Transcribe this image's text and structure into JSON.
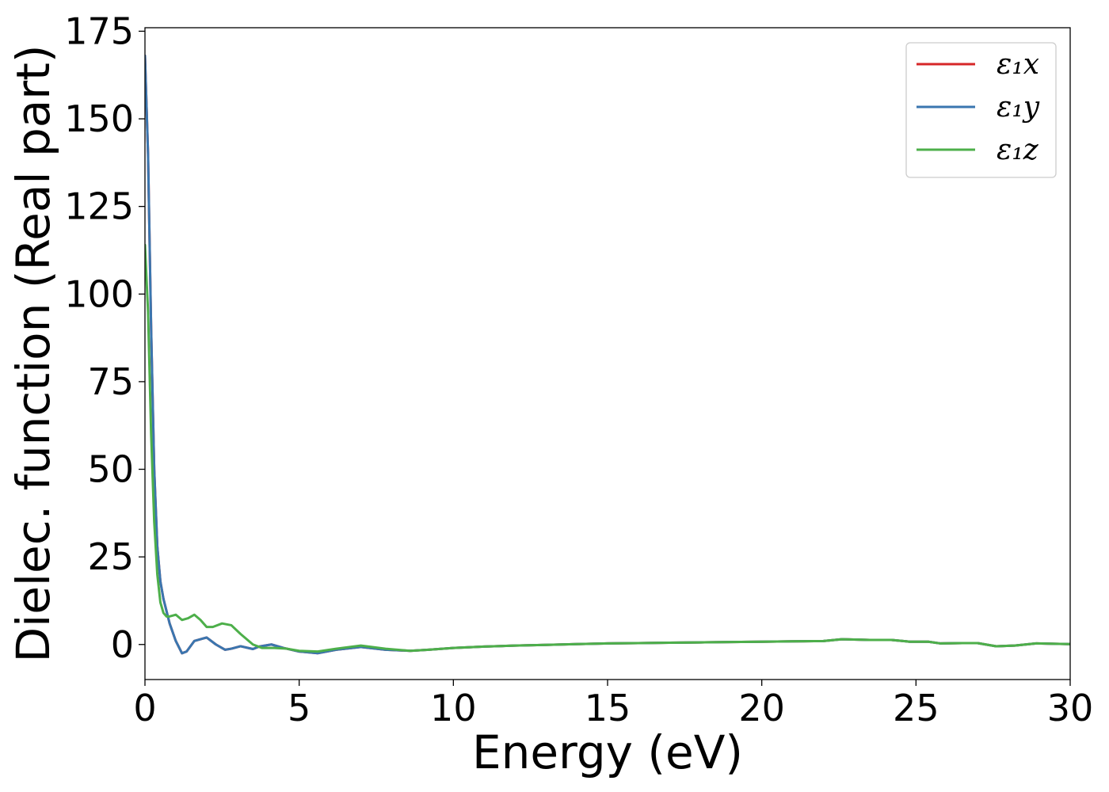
{
  "chart_data": {
    "type": "line",
    "title": "",
    "xlabel": "Energy (eV)",
    "ylabel": "Dielec. function (Real part)",
    "xlim": [
      0,
      30
    ],
    "ylim": [
      -10,
      176
    ],
    "xticks": [
      0,
      5,
      10,
      15,
      20,
      25,
      30
    ],
    "yticks": [
      0,
      25,
      50,
      75,
      100,
      125,
      150,
      175
    ],
    "grid": false,
    "legend_position": "top-right",
    "series": [
      {
        "name": "ε₁x",
        "legend_label": "ε₁x",
        "color": "#d62728",
        "x": [
          0,
          0.1,
          0.2,
          0.3,
          0.4,
          0.5,
          0.6,
          0.8,
          1.0,
          1.2,
          1.35,
          1.6,
          2.0,
          2.3,
          2.6,
          2.8,
          3.1,
          3.5,
          3.7,
          4.1,
          4.5,
          5.0,
          5.6,
          6.2,
          7.0,
          7.8,
          8.6,
          9.2,
          10,
          11,
          12,
          13,
          14,
          15,
          16,
          17,
          18,
          19,
          20,
          21,
          22,
          22.6,
          23.5,
          24.2,
          24.8,
          25.4,
          25.8,
          26.5,
          27.0,
          27.6,
          28.2,
          28.9,
          29.5,
          30
        ],
        "y": [
          168,
          140,
          90,
          50,
          28,
          18,
          13,
          6,
          1,
          -2.5,
          -2,
          1,
          2,
          0,
          -1.5,
          -1.2,
          -0.5,
          -1.3,
          -0.6,
          0,
          -1,
          -2,
          -2.5,
          -1.5,
          -0.7,
          -1.5,
          -1.8,
          -1.5,
          -1,
          -0.6,
          -0.3,
          -0.1,
          0.1,
          0.3,
          0.4,
          0.5,
          0.6,
          0.7,
          0.8,
          0.9,
          1.0,
          1.5,
          1.3,
          1.3,
          0.8,
          0.8,
          0.3,
          0.4,
          0.4,
          -0.5,
          -0.3,
          0.3,
          0.2,
          0.1
        ]
      },
      {
        "name": "ε₁y",
        "legend_label": "ε₁y",
        "color": "#3a76af",
        "x": [
          0,
          0.1,
          0.2,
          0.3,
          0.4,
          0.5,
          0.6,
          0.8,
          1.0,
          1.2,
          1.35,
          1.6,
          2.0,
          2.3,
          2.6,
          2.8,
          3.1,
          3.5,
          3.7,
          4.1,
          4.5,
          5.0,
          5.6,
          6.2,
          7.0,
          7.8,
          8.6,
          9.2,
          10,
          11,
          12,
          13,
          14,
          15,
          16,
          17,
          18,
          19,
          20,
          21,
          22,
          22.6,
          23.5,
          24.2,
          24.8,
          25.4,
          25.8,
          26.5,
          27.0,
          27.6,
          28.2,
          28.9,
          29.5,
          30
        ],
        "y": [
          168,
          140,
          90,
          50,
          28,
          18,
          13,
          6,
          1,
          -2.5,
          -2,
          1,
          2,
          0,
          -1.5,
          -1.2,
          -0.5,
          -1.3,
          -0.6,
          0,
          -1,
          -2,
          -2.5,
          -1.5,
          -0.7,
          -1.5,
          -1.8,
          -1.5,
          -1,
          -0.6,
          -0.3,
          -0.1,
          0.1,
          0.3,
          0.4,
          0.5,
          0.6,
          0.7,
          0.8,
          0.9,
          1.0,
          1.5,
          1.3,
          1.3,
          0.8,
          0.8,
          0.3,
          0.4,
          0.4,
          -0.5,
          -0.3,
          0.3,
          0.2,
          0.1
        ]
      },
      {
        "name": "ε₁z",
        "legend_label": "ε₁z",
        "color": "#4daf4a",
        "x": [
          0,
          0.1,
          0.2,
          0.3,
          0.4,
          0.5,
          0.6,
          0.7,
          0.8,
          1.0,
          1.2,
          1.4,
          1.6,
          1.8,
          2.0,
          2.2,
          2.5,
          2.8,
          3.1,
          3.5,
          3.8,
          4.2,
          4.6,
          5.0,
          5.6,
          6.2,
          7.0,
          7.8,
          8.6,
          9.2,
          10,
          11,
          12,
          13,
          14,
          15,
          16,
          17,
          18,
          19,
          20,
          21,
          22,
          22.6,
          23.5,
          24.2,
          24.8,
          25.4,
          25.8,
          26.5,
          27.0,
          27.6,
          28.2,
          28.9,
          29.5,
          30
        ],
        "y": [
          114,
          95,
          60,
          35,
          20,
          12,
          9,
          8,
          8,
          8.5,
          7,
          7.5,
          8.5,
          7,
          5,
          5,
          6,
          5.5,
          3,
          0,
          -1,
          -1,
          -1.2,
          -1.8,
          -2,
          -1.2,
          -0.3,
          -1.2,
          -1.8,
          -1.5,
          -1,
          -0.6,
          -0.3,
          -0.1,
          0.1,
          0.3,
          0.4,
          0.5,
          0.6,
          0.7,
          0.8,
          0.9,
          1.0,
          1.5,
          1.3,
          1.3,
          0.8,
          0.8,
          0.3,
          0.4,
          0.4,
          -0.5,
          -0.3,
          0.3,
          0.2,
          0.1
        ]
      }
    ]
  }
}
